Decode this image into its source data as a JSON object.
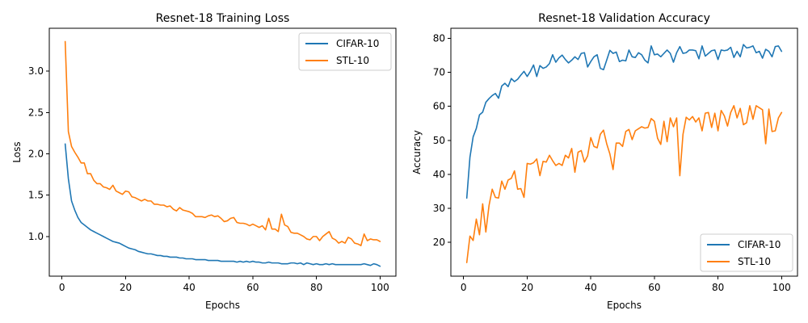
{
  "colors": {
    "cifar": "#1f77b4",
    "stl": "#ff7f0e"
  },
  "chart_data": [
    {
      "type": "line",
      "title": "Resnet-18 Training Loss",
      "xlabel": "Epochs",
      "ylabel": "Loss",
      "xlim": [
        -4,
        105
      ],
      "ylim": [
        0.52,
        3.52
      ],
      "xticks": [
        0,
        20,
        40,
        60,
        80,
        100
      ],
      "yticks": [
        1.0,
        1.5,
        2.0,
        2.5,
        3.0
      ],
      "ytick_labels": [
        "1.0",
        "1.5",
        "2.0",
        "2.5",
        "3.0"
      ],
      "grid": false,
      "legend_position": "top-right",
      "x": [
        1,
        2,
        3,
        4,
        5,
        6,
        7,
        8,
        9,
        10,
        11,
        12,
        13,
        14,
        15,
        16,
        17,
        18,
        19,
        20,
        21,
        22,
        23,
        24,
        25,
        26,
        27,
        28,
        29,
        30,
        31,
        32,
        33,
        34,
        35,
        36,
        37,
        38,
        39,
        40,
        41,
        42,
        43,
        44,
        45,
        46,
        47,
        48,
        49,
        50,
        51,
        52,
        53,
        54,
        55,
        56,
        57,
        58,
        59,
        60,
        61,
        62,
        63,
        64,
        65,
        66,
        67,
        68,
        69,
        70,
        71,
        72,
        73,
        74,
        75,
        76,
        77,
        78,
        79,
        80,
        81,
        82,
        83,
        84,
        85,
        86,
        87,
        88,
        89,
        90,
        91,
        92,
        93,
        94,
        95,
        96,
        97,
        98,
        99,
        100
      ],
      "series": [
        {
          "name": "CIFAR-10",
          "color_key": "cifar",
          "values": [
            2.12,
            1.7,
            1.43,
            1.32,
            1.23,
            1.17,
            1.14,
            1.11,
            1.08,
            1.06,
            1.04,
            1.02,
            1.0,
            0.98,
            0.96,
            0.94,
            0.93,
            0.92,
            0.9,
            0.88,
            0.86,
            0.85,
            0.84,
            0.82,
            0.81,
            0.8,
            0.79,
            0.79,
            0.78,
            0.77,
            0.77,
            0.76,
            0.76,
            0.75,
            0.75,
            0.75,
            0.74,
            0.74,
            0.73,
            0.73,
            0.73,
            0.72,
            0.72,
            0.72,
            0.72,
            0.71,
            0.71,
            0.71,
            0.71,
            0.7,
            0.7,
            0.7,
            0.7,
            0.7,
            0.69,
            0.7,
            0.69,
            0.7,
            0.69,
            0.7,
            0.69,
            0.69,
            0.68,
            0.68,
            0.69,
            0.68,
            0.68,
            0.68,
            0.67,
            0.67,
            0.67,
            0.68,
            0.68,
            0.67,
            0.68,
            0.66,
            0.68,
            0.67,
            0.66,
            0.67,
            0.66,
            0.66,
            0.67,
            0.66,
            0.67,
            0.66,
            0.66,
            0.66,
            0.66,
            0.66,
            0.66,
            0.66,
            0.66,
            0.66,
            0.67,
            0.66,
            0.65,
            0.67,
            0.66,
            0.64
          ]
        },
        {
          "name": "STL-10",
          "color_key": "stl",
          "values": [
            3.36,
            2.27,
            2.09,
            2.02,
            1.96,
            1.89,
            1.89,
            1.76,
            1.76,
            1.68,
            1.64,
            1.64,
            1.6,
            1.59,
            1.57,
            1.62,
            1.55,
            1.53,
            1.51,
            1.55,
            1.54,
            1.48,
            1.47,
            1.45,
            1.43,
            1.45,
            1.43,
            1.43,
            1.39,
            1.39,
            1.38,
            1.38,
            1.36,
            1.37,
            1.33,
            1.31,
            1.35,
            1.32,
            1.31,
            1.3,
            1.28,
            1.24,
            1.24,
            1.24,
            1.23,
            1.25,
            1.26,
            1.24,
            1.25,
            1.22,
            1.18,
            1.19,
            1.22,
            1.23,
            1.17,
            1.16,
            1.16,
            1.15,
            1.13,
            1.15,
            1.13,
            1.11,
            1.13,
            1.08,
            1.22,
            1.09,
            1.09,
            1.06,
            1.27,
            1.14,
            1.12,
            1.05,
            1.04,
            1.04,
            1.02,
            1.0,
            0.97,
            0.96,
            1.0,
            1.0,
            0.95,
            1.0,
            1.03,
            1.06,
            0.98,
            0.96,
            0.92,
            0.94,
            0.92,
            0.99,
            0.97,
            0.92,
            0.91,
            0.89,
            1.03,
            0.95,
            0.97,
            0.96,
            0.96,
            0.94
          ]
        }
      ]
    },
    {
      "type": "line",
      "title": "Resnet-18 Validation Accuracy",
      "xlabel": "Epochs",
      "ylabel": "Accuracy",
      "xlim": [
        -4,
        105
      ],
      "ylim": [
        10,
        83
      ],
      "xticks": [
        0,
        20,
        40,
        60,
        80,
        100
      ],
      "yticks": [
        20,
        30,
        40,
        50,
        60,
        70,
        80
      ],
      "ytick_labels": [
        "20",
        "30",
        "40",
        "50",
        "60",
        "70",
        "80"
      ],
      "grid": false,
      "legend_position": "bottom-right",
      "x": [
        1,
        2,
        3,
        4,
        5,
        6,
        7,
        8,
        9,
        10,
        11,
        12,
        13,
        14,
        15,
        16,
        17,
        18,
        19,
        20,
        21,
        22,
        23,
        24,
        25,
        26,
        27,
        28,
        29,
        30,
        31,
        32,
        33,
        34,
        35,
        36,
        37,
        38,
        39,
        40,
        41,
        42,
        43,
        44,
        45,
        46,
        47,
        48,
        49,
        50,
        51,
        52,
        53,
        54,
        55,
        56,
        57,
        58,
        59,
        60,
        61,
        62,
        63,
        64,
        65,
        66,
        67,
        68,
        69,
        70,
        71,
        72,
        73,
        74,
        75,
        76,
        77,
        78,
        79,
        80,
        81,
        82,
        83,
        84,
        85,
        86,
        87,
        88,
        89,
        90,
        91,
        92,
        93,
        94,
        95,
        96,
        97,
        98,
        99,
        100
      ],
      "series": [
        {
          "name": "CIFAR-10",
          "color_key": "cifar",
          "values": [
            33.0,
            45.0,
            51.0,
            53.5,
            57.5,
            58.3,
            61.2,
            62.3,
            63.2,
            63.8,
            62.4,
            66.0,
            66.8,
            65.8,
            68.2,
            67.3,
            68.0,
            69.2,
            70.3,
            68.8,
            70.3,
            72.2,
            68.8,
            72.0,
            71.2,
            71.6,
            72.6,
            75.2,
            73.0,
            74.3,
            75.1,
            73.8,
            72.8,
            73.6,
            74.6,
            73.8,
            75.6,
            75.8,
            71.6,
            73.2,
            74.6,
            75.2,
            71.2,
            70.8,
            73.6,
            76.5,
            75.6,
            76.0,
            73.2,
            73.6,
            73.4,
            76.6,
            74.6,
            74.4,
            75.8,
            75.2,
            73.6,
            72.8,
            77.8,
            75.2,
            75.4,
            74.6,
            75.6,
            76.6,
            75.6,
            73.0,
            75.8,
            77.6,
            75.6,
            75.8,
            76.6,
            76.6,
            76.4,
            74.0,
            77.8,
            74.8,
            75.6,
            76.4,
            76.6,
            73.8,
            76.6,
            76.4,
            76.6,
            77.4,
            74.4,
            76.2,
            74.6,
            78.2,
            77.2,
            77.4,
            77.8,
            75.8,
            76.2,
            74.2,
            76.8,
            76.2,
            74.6,
            77.6,
            77.8,
            76.2
          ]
        },
        {
          "name": "STL-10",
          "color_key": "stl",
          "values": [
            14.0,
            21.8,
            20.5,
            26.8,
            22.2,
            31.3,
            23.0,
            30.8,
            35.6,
            33.2,
            33.0,
            38.0,
            35.6,
            38.3,
            38.8,
            41.0,
            35.6,
            35.8,
            33.2,
            43.2,
            43.0,
            43.4,
            44.5,
            39.6,
            43.8,
            43.6,
            45.6,
            44.0,
            42.6,
            43.2,
            42.6,
            45.6,
            44.8,
            47.6,
            40.6,
            46.5,
            47.0,
            43.6,
            45.4,
            50.8,
            48.2,
            47.8,
            51.8,
            53.0,
            49.0,
            46.0,
            41.4,
            49.2,
            49.2,
            48.2,
            52.6,
            53.2,
            50.2,
            52.8,
            53.4,
            54.0,
            53.6,
            53.8,
            56.4,
            55.6,
            50.6,
            48.8,
            55.6,
            49.6,
            56.6,
            54.0,
            56.6,
            39.6,
            51.8,
            56.8,
            56.0,
            57.0,
            55.4,
            56.6,
            52.8,
            58.0,
            58.2,
            53.8,
            58.0,
            52.8,
            58.8,
            57.2,
            54.2,
            58.2,
            60.2,
            56.6,
            59.4,
            54.6,
            55.2,
            60.2,
            56.2,
            60.2,
            59.6,
            59.0,
            49.0,
            59.2,
            52.6,
            52.8,
            56.6,
            58.2
          ]
        }
      ]
    }
  ]
}
